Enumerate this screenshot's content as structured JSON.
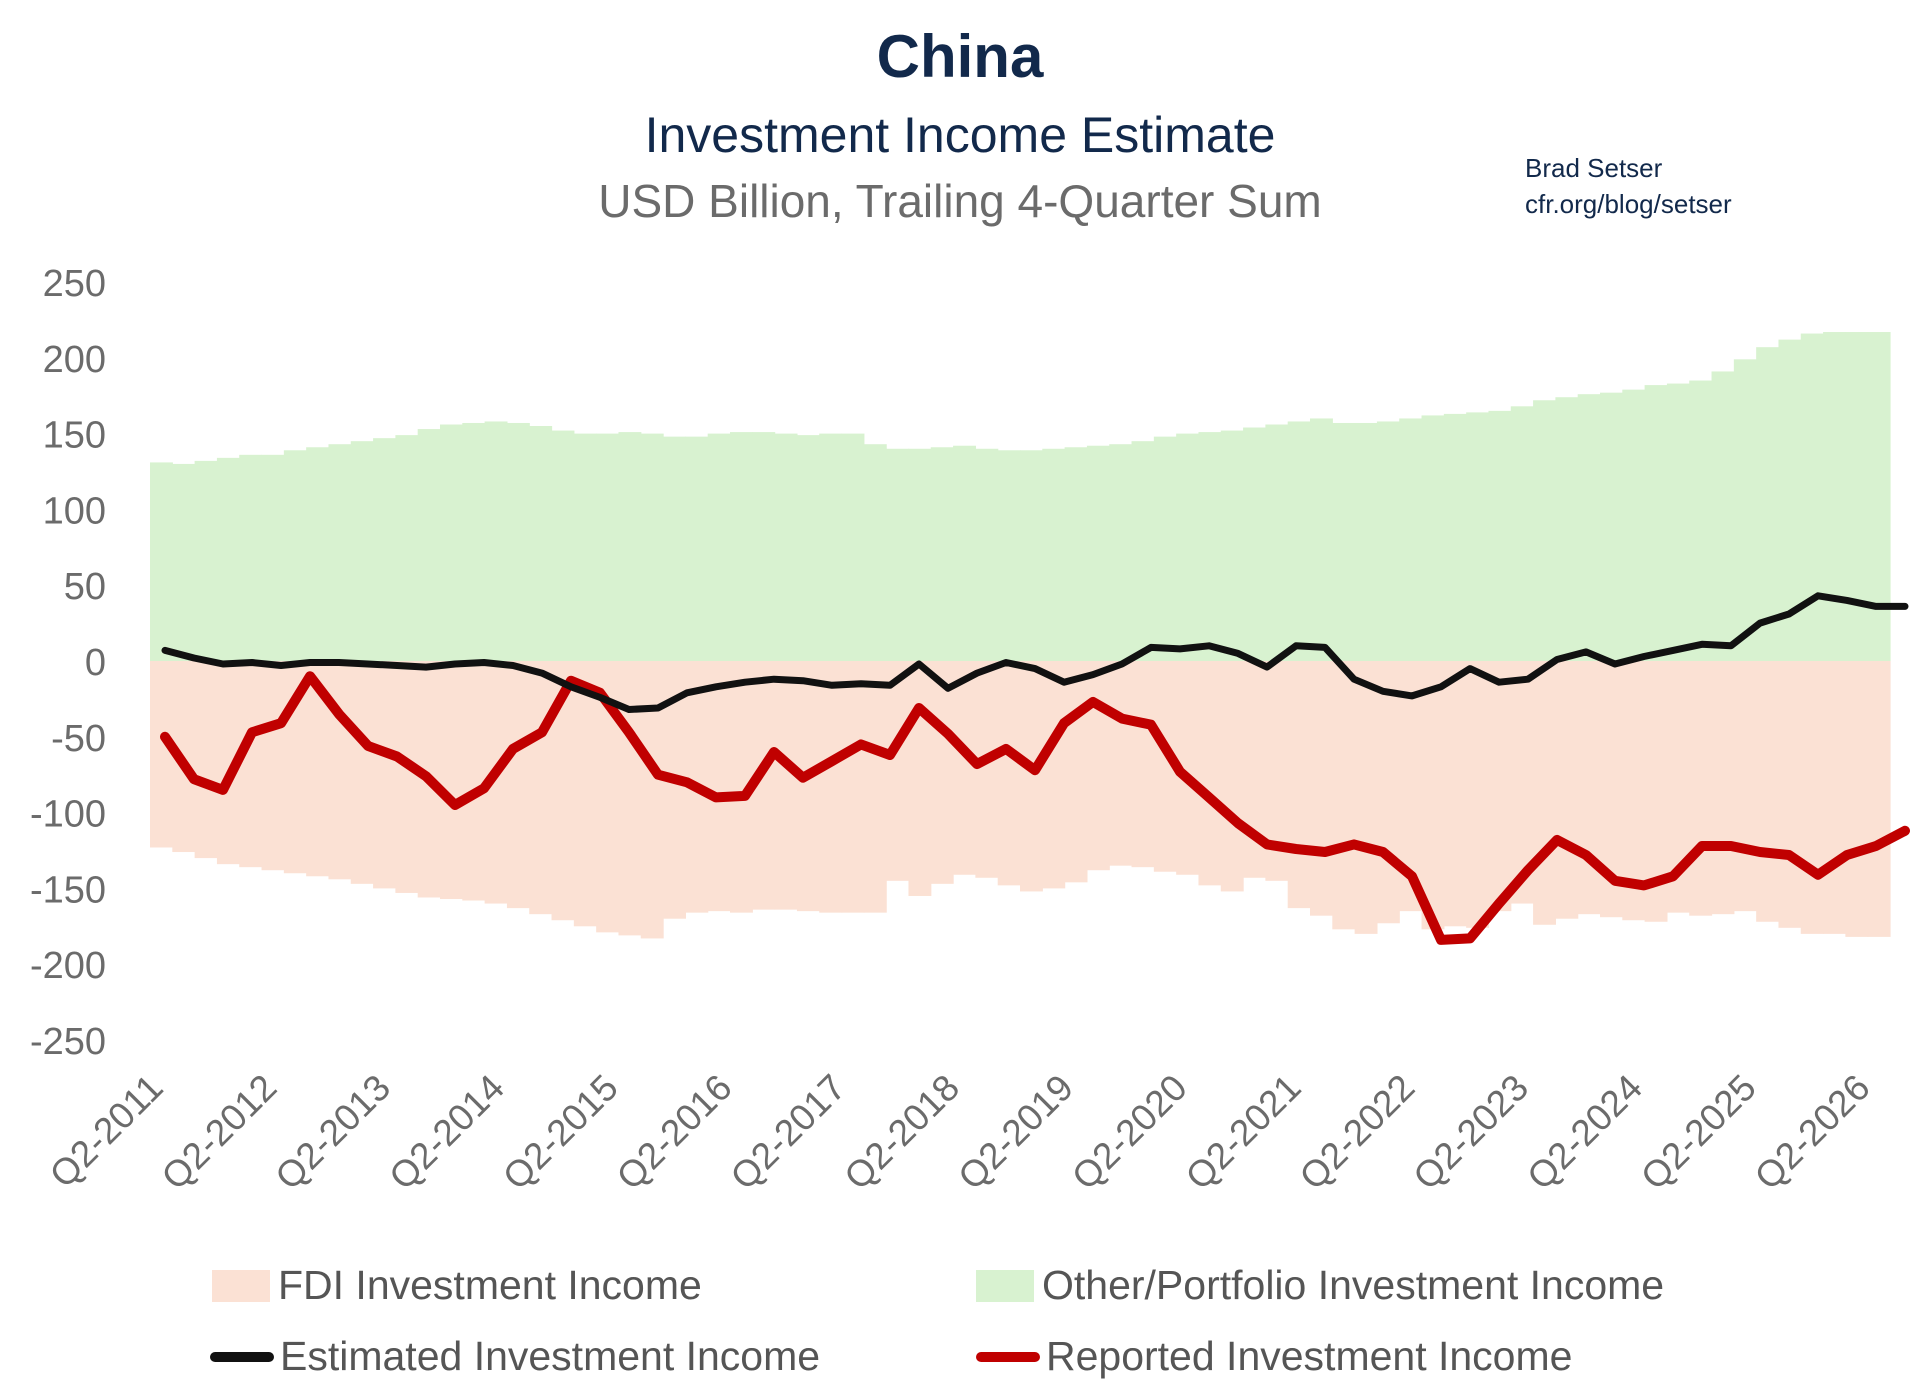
{
  "header": {
    "title": "China",
    "subtitle": "Investment Income Estimate",
    "units": "USD Billion, Trailing 4-Quarter Sum",
    "author": "Brad Setser",
    "source": "cfr.org/blog/setser"
  },
  "legend": {
    "fdi": "FDI Investment Income",
    "other": "Other/Portfolio Investment Income",
    "estimated": "Estimated Investment Income",
    "reported": "Reported Investment Income"
  },
  "colors": {
    "fdi": "#fbe1d4",
    "other": "#d8f2d0",
    "estimated": "#111111",
    "reported": "#c00000",
    "tick_text": "#6b6b6b"
  },
  "chart_data": {
    "type": "area",
    "title": "China",
    "subtitle": "Investment Income Estimate",
    "ylabel": "USD Billion, Trailing 4-Quarter Sum",
    "ylim": [
      -250,
      250
    ],
    "yticks": [
      250,
      200,
      150,
      100,
      50,
      0,
      -50,
      -100,
      -150,
      -200,
      -250
    ],
    "x_tick_labels": [
      "Q2-2011",
      "Q2-2012",
      "Q2-2013",
      "Q2-2014",
      "Q2-2015",
      "Q2-2016",
      "Q2-2017",
      "Q2-2018",
      "Q2-2019",
      "Q2-2020",
      "Q2-2021",
      "Q2-2022",
      "Q2-2023",
      "Q2-2024",
      "Q2-2025",
      "Q2-2026"
    ],
    "x_start": "Q2-2011",
    "grid": false,
    "legend_position": "bottom",
    "series": [
      {
        "name": "Other/Portfolio Investment Income",
        "kind": "area",
        "values": [
          131,
          130,
          132,
          134,
          136,
          136,
          139,
          141,
          143,
          145,
          147,
          149,
          153,
          156,
          157,
          158,
          157,
          155,
          152,
          150,
          150,
          151,
          150,
          148,
          148,
          150,
          151,
          151,
          150,
          149,
          150,
          150,
          143,
          140,
          140,
          141,
          142,
          140,
          139,
          139,
          140,
          141,
          142,
          143,
          145,
          148,
          150,
          151,
          152,
          154,
          156,
          158,
          160,
          157,
          157,
          158,
          160,
          162,
          163,
          164,
          165,
          168,
          172,
          174,
          176,
          177,
          179,
          182,
          183,
          185,
          191,
          199,
          207,
          212,
          216,
          217,
          217,
          217
        ]
      },
      {
        "name": "FDI Investment Income",
        "kind": "area",
        "values": [
          -123,
          -126,
          -130,
          -134,
          -136,
          -138,
          -140,
          -142,
          -144,
          -147,
          -150,
          -153,
          -156,
          -157,
          -158,
          -160,
          -163,
          -167,
          -171,
          -175,
          -179,
          -181,
          -183,
          -170,
          -166,
          -165,
          -166,
          -164,
          -164,
          -165,
          -166,
          -166,
          -166,
          -145,
          -155,
          -147,
          -141,
          -143,
          -148,
          -152,
          -150,
          -146,
          -138,
          -135,
          -136,
          -139,
          -141,
          -148,
          -152,
          -143,
          -145,
          -163,
          -168,
          -177,
          -180,
          -173,
          -165,
          -177,
          -175,
          -176,
          -165,
          -160,
          -174,
          -170,
          -167,
          -169,
          -171,
          -172,
          -166,
          -168,
          -167,
          -165,
          -172,
          -176,
          -180,
          -180,
          -182,
          -182
        ]
      },
      {
        "name": "Reported Investment Income",
        "kind": "line",
        "values": [
          -50,
          -78,
          -85,
          -47,
          -41,
          -10,
          -35,
          -56,
          -63,
          -76,
          -95,
          -84,
          -58,
          -47,
          -13,
          -21,
          -47,
          -75,
          -80,
          -90,
          -89,
          -60,
          -77,
          -66,
          -55,
          -62,
          -31,
          -48,
          -68,
          -58,
          -72,
          -41,
          -27,
          -38,
          -42,
          -73,
          -90,
          -107,
          -121,
          -124,
          -126,
          -121,
          -126,
          -142,
          -184,
          -183,
          -160,
          -138,
          -118,
          -128,
          -145,
          -148,
          -142,
          -122,
          -122,
          -126,
          -128,
          -141,
          -128,
          -122,
          -112
        ]
      },
      {
        "name": "Estimated Investment Income",
        "kind": "line",
        "values": [
          7,
          2,
          -2,
          -1,
          -3,
          -1,
          -1,
          -2,
          -3,
          -4,
          -2,
          -1,
          -3,
          -8,
          -17,
          -24,
          -32,
          -31,
          -21,
          -17,
          -14,
          -12,
          -13,
          -16,
          -15,
          -16,
          -2,
          -18,
          -8,
          -1,
          -5,
          -14,
          -9,
          -2,
          9,
          8,
          10,
          5,
          -4,
          10,
          9,
          -12,
          -20,
          -23,
          -17,
          -5,
          -14,
          -12,
          1,
          6,
          -2,
          3,
          7,
          11,
          10,
          25,
          31,
          43,
          40,
          36,
          36
        ]
      }
    ]
  }
}
